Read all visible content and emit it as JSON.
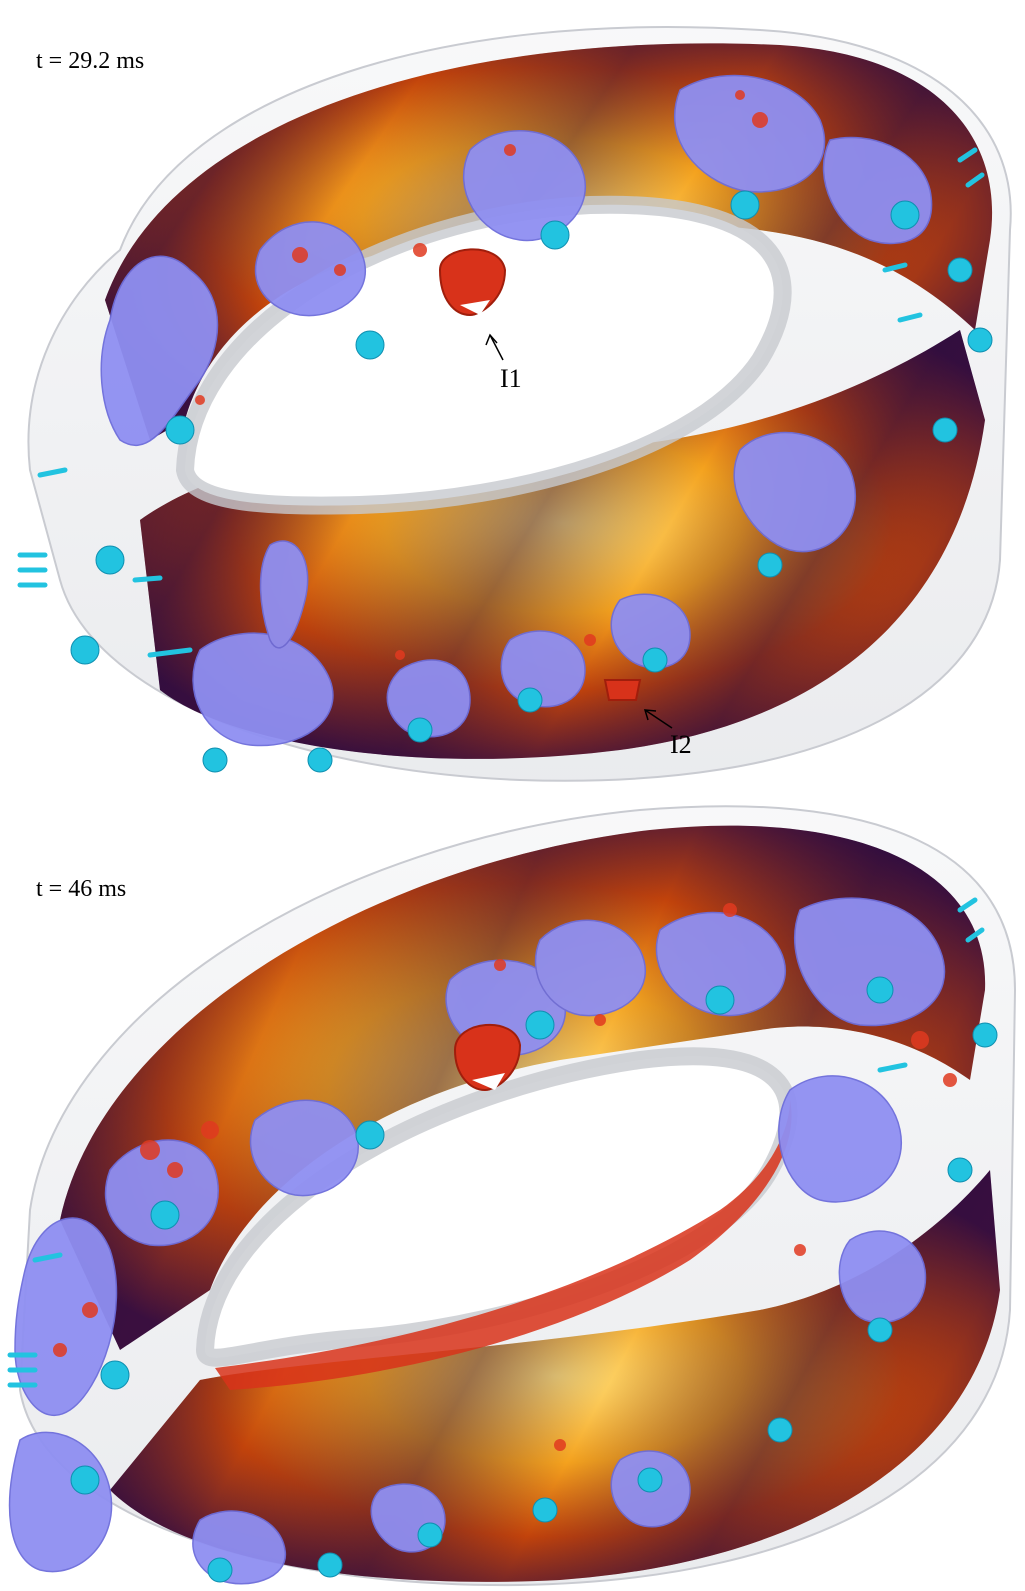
{
  "panels": [
    {
      "time_label": "t = 29.2 ms",
      "callouts": [
        "I1",
        "I2"
      ]
    },
    {
      "time_label": "t = 46 ms",
      "callouts": []
    }
  ],
  "colors": {
    "background": "#ffffff",
    "casing": "#e6e7ea",
    "field_dark": "#2a0c3e",
    "field_mid": "#c8420a",
    "field_bright": "#ffd24a",
    "flame_surface": "#8f8ff2",
    "injector": "#22c3e0",
    "hot_spot": "#e03a20"
  }
}
